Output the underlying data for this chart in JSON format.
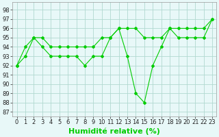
{
  "xlabel": "Humidité relative (%)",
  "background_color": "#e8f8f8",
  "grid_color": "#b0d8d0",
  "line_color": "#00cc00",
  "xlim": [
    -0.5,
    23.5
  ],
  "ylim": [
    86.5,
    98.8
  ],
  "yticks": [
    87,
    88,
    89,
    90,
    91,
    92,
    93,
    94,
    95,
    96,
    97,
    98
  ],
  "xticks": [
    0,
    1,
    2,
    3,
    4,
    5,
    6,
    7,
    8,
    9,
    10,
    11,
    12,
    13,
    14,
    15,
    16,
    17,
    18,
    19,
    20,
    21,
    22,
    23
  ],
  "line1_x": [
    0,
    1,
    2,
    3,
    4,
    5,
    6,
    7,
    8,
    9,
    10,
    11,
    12,
    13,
    14,
    15,
    16,
    17,
    18,
    19,
    20,
    21,
    22,
    23
  ],
  "line1_y": [
    92,
    94,
    95,
    94,
    93,
    93,
    93,
    93,
    92,
    93,
    93,
    95,
    96,
    93,
    89,
    88,
    92,
    94,
    96,
    95,
    95,
    95,
    95,
    97
  ],
  "line2_x": [
    0,
    1,
    2,
    3,
    4,
    5,
    6,
    7,
    8,
    9,
    10,
    11,
    12,
    13,
    14,
    15,
    16,
    17,
    18,
    19,
    20,
    21,
    22,
    23
  ],
  "line2_y": [
    92,
    93,
    95,
    95,
    94,
    94,
    94,
    94,
    94,
    94,
    95,
    95,
    96,
    96,
    96,
    95,
    95,
    95,
    96,
    96,
    96,
    96,
    96,
    97
  ],
  "xlabel_fontsize": 8,
  "tick_fontsize": 6,
  "marker_size": 2.0,
  "line_width": 0.8
}
